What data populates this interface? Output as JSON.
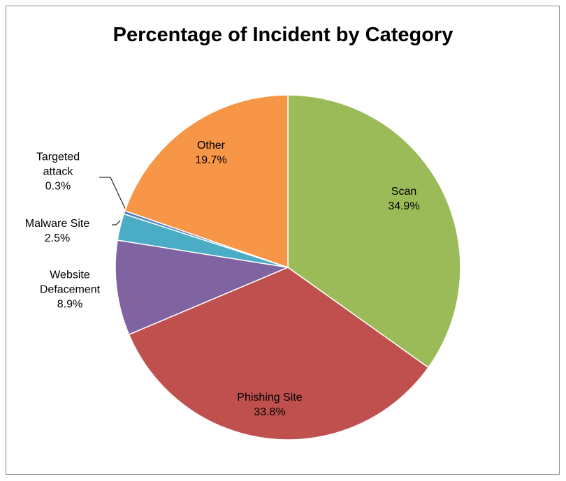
{
  "chart_data": {
    "type": "pie",
    "title": "Percentage of Incident by Category",
    "categories": [
      "Scan",
      "Phishing Site",
      "Website Defacement",
      "Malware Site",
      "Targeted attack",
      "Other"
    ],
    "values": [
      34.9,
      33.8,
      8.9,
      2.5,
      0.3,
      19.7
    ],
    "value_labels": [
      "34.9%",
      "33.8%",
      "8.9%",
      "2.5%",
      "0.3%",
      "19.7%"
    ],
    "colors": [
      "#9bbb59",
      "#c0504d",
      "#8064a2",
      "#4bacc6",
      "#4f81bd",
      "#f79646"
    ]
  }
}
